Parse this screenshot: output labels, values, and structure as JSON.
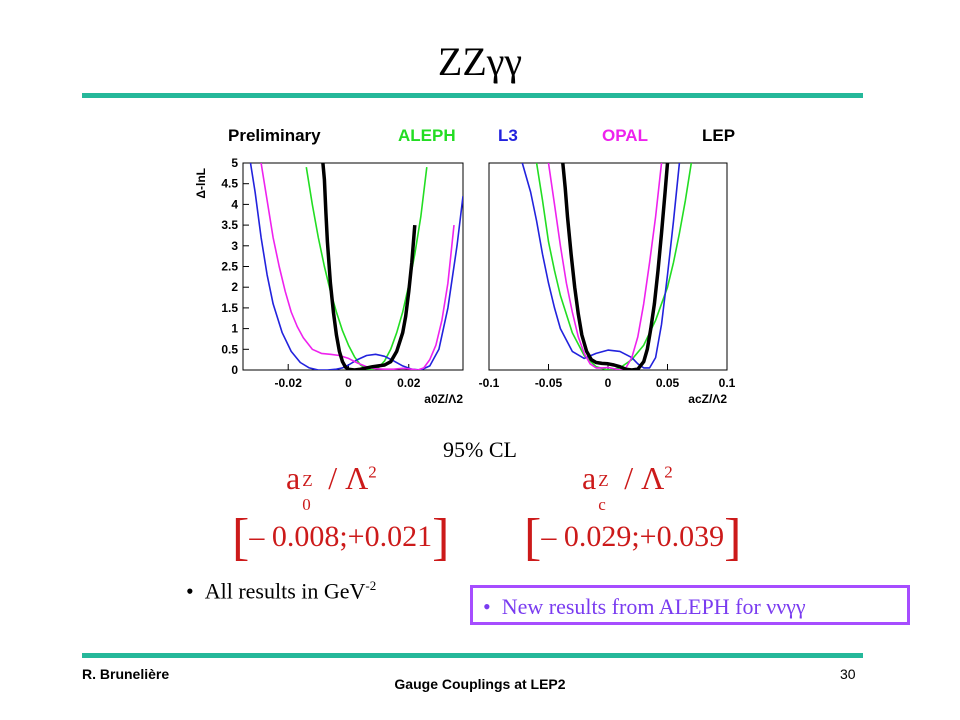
{
  "slide": {
    "title": "ZZγγ",
    "confidence_label": "95% CL",
    "param_a0": {
      "base": "a",
      "sub": "0",
      "sup": "Z",
      "tail": " / Λ",
      "tail_sup": "2"
    },
    "param_ac": {
      "base": "a",
      "sub": "c",
      "sup": "Z",
      "tail": " / Λ",
      "tail_sup": "2"
    },
    "interval_a0": "– 0.008;+0.021",
    "interval_ac": "– 0.029;+0.039",
    "bullet_units": {
      "text": "All results in GeV",
      "sup": "-2"
    },
    "bullet_new": "New results from ALEPH for ννγγ",
    "footer_author": "R. Brunelière",
    "footer_title": "Gauge Couplings at LEP2",
    "page_number": "30",
    "accent_color": "#25b89a",
    "callout_border_color": "#a64dff"
  },
  "legend": {
    "prelim": "Preliminary",
    "aleph": "ALEPH",
    "l3": "L3",
    "opal": "OPAL",
    "lep": "LEP",
    "colors": {
      "aleph": "#22dd22",
      "l3": "#2222dd",
      "opal": "#ee22ee",
      "lep": "#000000"
    }
  },
  "chart_data": [
    {
      "type": "line",
      "ylabel": "Δ-lnL",
      "xlabel": "a0Z/Λ2",
      "xlim": [
        -0.035,
        0.038
      ],
      "ylim": [
        0,
        5
      ],
      "x_ticks": [
        -0.02,
        0,
        0.02
      ],
      "x_tick_labels": [
        "-0.02",
        "0",
        "0.02"
      ],
      "y_ticks": [
        0,
        0.5,
        1,
        1.5,
        2,
        2.5,
        3,
        3.5,
        4,
        4.5,
        5
      ],
      "y_tick_labels": [
        "0",
        "0.5",
        "1",
        "1.5",
        "2",
        "2.5",
        "3",
        "3.5",
        "4",
        "4.5",
        "5"
      ],
      "series": [
        {
          "name": "ALEPH",
          "color": "#22dd22",
          "x": [
            -0.014,
            -0.012,
            -0.01,
            -0.008,
            -0.006,
            -0.004,
            -0.002,
            0,
            0.002,
            0.004,
            0.006,
            0.008,
            0.01,
            0.012,
            0.014,
            0.016,
            0.018,
            0.02,
            0.022,
            0.024,
            0.026
          ],
          "y": [
            4.9,
            4.0,
            3.2,
            2.5,
            1.9,
            1.4,
            0.95,
            0.6,
            0.32,
            0.12,
            0.02,
            0.0,
            0.06,
            0.22,
            0.5,
            0.9,
            1.4,
            2.05,
            2.8,
            3.7,
            4.9
          ]
        },
        {
          "name": "L3",
          "color": "#2222dd",
          "x": [
            -0.0325,
            -0.031,
            -0.029,
            -0.027,
            -0.025,
            -0.022,
            -0.019,
            -0.016,
            -0.013,
            -0.01,
            -0.007,
            -0.004,
            -0.002,
            0,
            0.003,
            0.006,
            0.009,
            0.012,
            0.015,
            0.018,
            0.021,
            0.024,
            0.027,
            0.03,
            0.033,
            0.036,
            0.038
          ],
          "y": [
            5.0,
            4.3,
            3.2,
            2.3,
            1.6,
            0.9,
            0.45,
            0.18,
            0.05,
            0.0,
            0.0,
            0.02,
            0.05,
            0.12,
            0.25,
            0.35,
            0.38,
            0.33,
            0.22,
            0.1,
            0.02,
            0.0,
            0.1,
            0.5,
            1.5,
            3.0,
            4.2
          ]
        },
        {
          "name": "OPAL",
          "color": "#ee22ee",
          "x": [
            -0.029,
            -0.027,
            -0.025,
            -0.023,
            -0.021,
            -0.019,
            -0.017,
            -0.015,
            -0.012,
            -0.009,
            -0.006,
            -0.003,
            0,
            0.003,
            0.006,
            0.009,
            0.012,
            0.015,
            0.018,
            0.021,
            0.023,
            0.025,
            0.027,
            0.029,
            0.031,
            0.033,
            0.035
          ],
          "y": [
            5.0,
            4.1,
            3.2,
            2.5,
            1.9,
            1.4,
            1.05,
            0.78,
            0.5,
            0.4,
            0.38,
            0.35,
            0.28,
            0.17,
            0.08,
            0.03,
            0.02,
            0.02,
            0.04,
            0.02,
            0.0,
            0.05,
            0.25,
            0.6,
            1.2,
            2.1,
            3.5
          ]
        },
        {
          "name": "LEP",
          "color": "#000000",
          "x": [
            -0.0085,
            -0.008,
            -0.0075,
            -0.007,
            -0.006,
            -0.005,
            -0.004,
            -0.003,
            -0.002,
            -0.001,
            0,
            0.002,
            0.004,
            0.006,
            0.008,
            0.01,
            0.012,
            0.014,
            0.016,
            0.018,
            0.019,
            0.02,
            0.021,
            0.022
          ],
          "y": [
            5.0,
            4.6,
            3.8,
            3.1,
            2.1,
            1.4,
            0.85,
            0.45,
            0.2,
            0.07,
            0.02,
            0.0,
            0.02,
            0.05,
            0.08,
            0.1,
            0.12,
            0.2,
            0.45,
            0.9,
            1.3,
            1.9,
            2.6,
            3.5
          ]
        }
      ]
    },
    {
      "type": "line",
      "ylabel": "",
      "xlabel": "acZ/Λ2",
      "xlim": [
        -0.1,
        0.1
      ],
      "ylim": [
        0,
        5
      ],
      "x_ticks": [
        -0.1,
        -0.05,
        0,
        0.05,
        0.1
      ],
      "x_tick_labels": [
        "-0.1",
        "-0.05",
        "0",
        "0.05",
        "0.1"
      ],
      "y_ticks": [],
      "y_tick_labels": [],
      "series": [
        {
          "name": "ALEPH",
          "color": "#22dd22",
          "x": [
            -0.06,
            -0.055,
            -0.05,
            -0.045,
            -0.04,
            -0.03,
            -0.02,
            -0.01,
            0,
            0.01,
            0.02,
            0.03,
            0.04,
            0.05,
            0.055,
            0.06,
            0.065,
            0.07
          ],
          "y": [
            5.0,
            4.1,
            3.1,
            2.4,
            1.8,
            0.9,
            0.35,
            0.08,
            0.0,
            0.05,
            0.25,
            0.6,
            1.2,
            2.0,
            2.6,
            3.3,
            4.1,
            5.0
          ]
        },
        {
          "name": "L3",
          "color": "#2222dd",
          "x": [
            -0.072,
            -0.065,
            -0.06,
            -0.055,
            -0.05,
            -0.045,
            -0.04,
            -0.03,
            -0.02,
            -0.01,
            0,
            0.01,
            0.02,
            0.025,
            0.03,
            0.035,
            0.04,
            0.045,
            0.05,
            0.055,
            0.06
          ],
          "y": [
            5.0,
            4.3,
            3.6,
            2.8,
            2.1,
            1.5,
            1.0,
            0.45,
            0.28,
            0.4,
            0.48,
            0.45,
            0.3,
            0.15,
            0.05,
            0.05,
            0.3,
            1.1,
            2.3,
            3.6,
            5.0
          ]
        },
        {
          "name": "OPAL",
          "color": "#ee22ee",
          "x": [
            -0.05,
            -0.045,
            -0.04,
            -0.035,
            -0.03,
            -0.025,
            -0.02,
            -0.015,
            -0.01,
            -0.005,
            0,
            0.005,
            0.01,
            0.015,
            0.02,
            0.025,
            0.03,
            0.035,
            0.04,
            0.045
          ],
          "y": [
            5.0,
            4.0,
            3.0,
            2.1,
            1.4,
            0.8,
            0.4,
            0.15,
            0.05,
            0.05,
            0.06,
            0.03,
            0.0,
            0.05,
            0.3,
            0.8,
            1.6,
            2.6,
            3.7,
            5.0
          ]
        },
        {
          "name": "LEP",
          "color": "#000000",
          "x": [
            -0.038,
            -0.036,
            -0.034,
            -0.031,
            -0.028,
            -0.025,
            -0.022,
            -0.018,
            -0.014,
            -0.01,
            -0.005,
            0,
            0.005,
            0.01,
            0.015,
            0.02,
            0.025,
            0.03,
            0.033,
            0.036,
            0.039,
            0.042,
            0.045,
            0.048,
            0.05
          ],
          "y": [
            5.0,
            4.4,
            3.7,
            2.8,
            2.0,
            1.35,
            0.85,
            0.45,
            0.25,
            0.18,
            0.16,
            0.15,
            0.12,
            0.08,
            0.02,
            0.0,
            0.02,
            0.2,
            0.5,
            1.0,
            1.6,
            2.4,
            3.3,
            4.3,
            5.0
          ]
        }
      ]
    }
  ]
}
